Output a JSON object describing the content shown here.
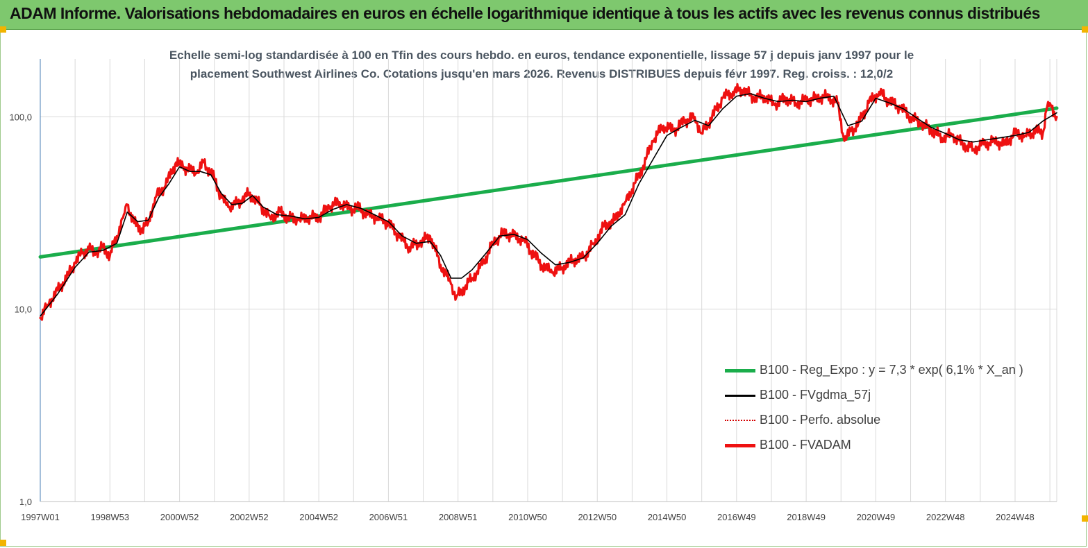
{
  "header": {
    "title": "ADAM Informe. Valorisations hebdomadaires en euros en échelle logarithmique identique à tous les actifs avec les revenus connus distribués"
  },
  "subtitle": {
    "line1": "Echelle semi-log standardisée à 100 en Tfin des cours hebdo. en euros, tendance exponentielle, lissage 57 j depuis janv 1997 pour le",
    "line2": "placement Southwest Airlines Co. Cotations jusqu'en mars 2026. Revenus DISTRIBUES depuis févr 1997. Reg. croiss. : 12,0/2"
  },
  "colors": {
    "header_bg": "#7ec86e",
    "regression": "#1aad4b",
    "smoothed": "#000000",
    "perf_absolue": "#d40000",
    "fvadam": "#ee1111",
    "grid": "#d9d9d9",
    "axis": "#4a7fb5"
  },
  "chart_data": {
    "type": "line",
    "y_scale": "log",
    "ylim": [
      1,
      200
    ],
    "y_ticks": [
      "1,0",
      "10,0",
      "100,0"
    ],
    "x_tick_labels": [
      "1997W01",
      "1998W53",
      "2000W52",
      "2002W52",
      "2004W52",
      "2006W51",
      "2008W51",
      "2010W50",
      "2012W50",
      "2014W50",
      "2016W49",
      "2018W49",
      "2020W49",
      "2022W48",
      "2024W48"
    ],
    "x_range_years": [
      1997.0,
      2026.2
    ],
    "grid": "vertical and horizontal",
    "legend_position": "bottom-right",
    "legend": [
      {
        "key": "reg",
        "label": "B100 - Reg_Expo : y = 7,3 *  exp( 6,1% *   X_an )",
        "style": "solid-thick",
        "color": "#1aad4b"
      },
      {
        "key": "smooth",
        "label": "B100 - FVgdma_57j",
        "style": "solid",
        "color": "#000000"
      },
      {
        "key": "perf",
        "label": "B100 - Perfo. absolue",
        "style": "dotted",
        "color": "#d40000"
      },
      {
        "key": "fvadam",
        "label": "B100 - FVADAM",
        "style": "solid-thick",
        "color": "#ee1111"
      }
    ],
    "series": [
      {
        "name": "B100 - Reg_Expo : y = 7,3 *  exp( 6,1% *   X_an )",
        "key": "reg",
        "x": [
          1997.0,
          2026.2
        ],
        "values": [
          18.7,
          111
        ]
      },
      {
        "name": "B100 - FVADAM",
        "key": "fvadam",
        "x": [
          1997.0,
          1997.2,
          1997.5,
          1997.8,
          1998.0,
          1998.2,
          1998.4,
          1998.6,
          1998.8,
          1999.0,
          1999.2,
          1999.4,
          1999.5,
          1999.7,
          1999.9,
          2000.1,
          2000.3,
          2000.6,
          2000.9,
          2001.1,
          2001.3,
          2001.5,
          2001.7,
          2002.0,
          2002.2,
          2002.4,
          2002.6,
          2002.8,
          2003.0,
          2003.3,
          2003.6,
          2003.9,
          2004.1,
          2004.4,
          2004.7,
          2005.0,
          2005.3,
          2005.6,
          2005.9,
          2006.1,
          2006.4,
          2006.7,
          2007.0,
          2007.3,
          2007.6,
          2007.9,
          2008.2,
          2008.5,
          2008.8,
          2008.95,
          2009.2,
          2009.4,
          2009.7,
          2010.0,
          2010.3,
          2010.6,
          2010.9,
          2011.1,
          2011.4,
          2011.7,
          2012.0,
          2012.3,
          2012.6,
          2012.9,
          2013.2,
          2013.5,
          2013.8,
          2014.0,
          2014.3,
          2014.6,
          2014.9,
          2015.2,
          2015.5,
          2015.8,
          2016.0,
          2016.3,
          2016.6,
          2016.9,
          2017.2,
          2017.5,
          2017.8,
          2018.1,
          2018.4,
          2018.7,
          2019.0,
          2019.3,
          2019.6,
          2019.9,
          2020.1,
          2020.3,
          2020.5,
          2020.8,
          2021.1,
          2021.4,
          2021.7,
          2022.0,
          2022.3,
          2022.6,
          2022.9,
          2023.2,
          2023.5,
          2023.8,
          2024.1,
          2024.4,
          2024.7,
          2025.0,
          2025.3,
          2025.6,
          2025.8,
          2025.9,
          2026.0,
          2026.2
        ],
        "values": [
          9.0,
          10.5,
          12.5,
          15.0,
          17.5,
          19.5,
          20.5,
          19.5,
          21.0,
          19.0,
          24.0,
          31.0,
          35.0,
          28.0,
          26.0,
          28.0,
          38.0,
          44.0,
          58.0,
          55.0,
          53.0,
          51.0,
          58.0,
          48.0,
          38.0,
          34.0,
          35.0,
          37.0,
          40.0,
          35.0,
          30.0,
          32.0,
          30.0,
          29.0,
          30.0,
          30.0,
          34.0,
          36.0,
          33.0,
          34.0,
          31.0,
          30.0,
          28.0,
          24.0,
          21.0,
          22.0,
          24.0,
          17.0,
          13.5,
          11.5,
          13.0,
          14.5,
          17.0,
          22.0,
          25.0,
          24.0,
          23.0,
          20.0,
          17.0,
          15.5,
          16.5,
          18.0,
          18.5,
          22.0,
          27.0,
          29.0,
          36.0,
          42.0,
          54.0,
          75.0,
          90.0,
          85.0,
          95.0,
          100.0,
          82.0,
          100.0,
          125.0,
          135.0,
          138.0,
          125.0,
          128.0,
          115.0,
          125.0,
          118.0,
          122.0,
          125.0,
          128.0,
          118.0,
          75.0,
          85.0,
          92.0,
          118.0,
          135.0,
          120.0,
          112.0,
          100.0,
          92.0,
          85.0,
          78.0,
          80.0,
          72.0,
          68.0,
          72.0,
          75.0,
          72.0,
          82.0,
          80.0,
          85.0,
          82.0,
          108.0,
          118.0,
          100.0
        ]
      },
      {
        "name": "B100 - FVgdma_57j",
        "key": "smooth",
        "x": [
          1997.0,
          1997.5,
          1998.0,
          1998.4,
          1998.8,
          1999.2,
          1999.5,
          1999.8,
          2000.1,
          2000.4,
          2000.7,
          2001.0,
          2001.3,
          2001.6,
          2001.9,
          2002.2,
          2002.5,
          2002.8,
          2003.1,
          2003.4,
          2003.8,
          2004.2,
          2004.6,
          2005.0,
          2005.4,
          2005.8,
          2006.2,
          2006.6,
          2007.0,
          2007.4,
          2007.8,
          2008.2,
          2008.5,
          2008.8,
          2009.1,
          2009.4,
          2009.8,
          2010.2,
          2010.6,
          2011.0,
          2011.4,
          2011.8,
          2012.2,
          2012.6,
          2013.0,
          2013.4,
          2013.8,
          2014.2,
          2014.6,
          2015.0,
          2015.4,
          2015.8,
          2016.2,
          2016.6,
          2017.0,
          2017.4,
          2017.8,
          2018.2,
          2018.6,
          2019.0,
          2019.4,
          2019.8,
          2020.2,
          2020.6,
          2021.0,
          2021.4,
          2021.8,
          2022.2,
          2022.6,
          2023.0,
          2023.4,
          2023.8,
          2024.2,
          2024.6,
          2025.0,
          2025.4,
          2025.8,
          2026.2
        ],
        "values": [
          9.2,
          12.0,
          16.5,
          19.8,
          20.2,
          22.0,
          32.0,
          28.5,
          29.0,
          38.0,
          45.0,
          55.0,
          52.0,
          52.0,
          50.0,
          40.0,
          35.0,
          35.5,
          39.0,
          34.0,
          31.0,
          30.5,
          29.5,
          30.0,
          33.0,
          35.0,
          33.5,
          31.0,
          28.5,
          24.0,
          22.0,
          22.5,
          19.0,
          14.5,
          14.5,
          16.0,
          19.5,
          24.0,
          24.5,
          23.0,
          19.5,
          17.0,
          17.5,
          18.5,
          22.0,
          27.0,
          31.0,
          45.0,
          60.0,
          80.0,
          88.0,
          96.0,
          90.0,
          110.0,
          128.0,
          132.0,
          125.0,
          120.0,
          122.0,
          120.0,
          125.0,
          128.0,
          90.0,
          95.0,
          125.0,
          118.0,
          110.0,
          98.0,
          88.0,
          82.0,
          76.0,
          74.0,
          76.0,
          78.0,
          80.0,
          83.0,
          95.0,
          105.0
        ]
      },
      {
        "name": "B100 - Perfo. absolue",
        "key": "perf",
        "x": [],
        "values": []
      }
    ]
  }
}
